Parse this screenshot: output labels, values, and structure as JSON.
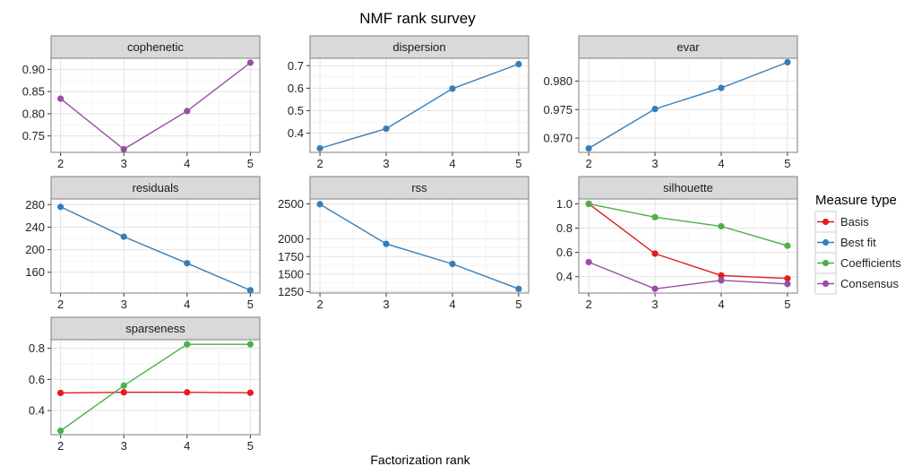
{
  "chart_data": {
    "type": "line",
    "title": "NMF rank survey",
    "xlabel": "Factorization rank",
    "legend": {
      "title": "Measure type",
      "position": "right",
      "entries": [
        {
          "name": "Basis",
          "color": "#e41a1c"
        },
        {
          "name": "Best fit",
          "color": "#377eb8"
        },
        {
          "name": "Coefficients",
          "color": "#4daf4a"
        },
        {
          "name": "Consensus",
          "color": "#984ea3"
        }
      ]
    },
    "grid": true,
    "x": [
      2,
      3,
      4,
      5
    ],
    "panels": [
      {
        "name": "cophenetic",
        "ylim": [
          0.713,
          0.925
        ],
        "yticks": [
          "0.75",
          "0.80",
          "0.85",
          "0.90"
        ],
        "series": [
          {
            "type": "Consensus",
            "values": [
              0.834,
              0.72,
              0.806,
              0.915
            ]
          }
        ]
      },
      {
        "name": "dispersion",
        "ylim": [
          0.315,
          0.733
        ],
        "yticks": [
          "0.4",
          "0.5",
          "0.6",
          "0.7"
        ],
        "series": [
          {
            "type": "Best fit",
            "values": [
              0.333,
              0.42,
              0.598,
              0.707
            ]
          }
        ]
      },
      {
        "name": "evar",
        "ylim": [
          0.9675,
          0.984
        ],
        "yticks": [
          "0.970",
          "0.975",
          "0.980"
        ],
        "series": [
          {
            "type": "Best fit",
            "values": [
              0.9682,
              0.9751,
              0.9788,
              0.9833
            ]
          }
        ]
      },
      {
        "name": "residuals",
        "ylim": [
          123,
          290
        ],
        "yticks": [
          "160",
          "200",
          "240",
          "280"
        ],
        "series": [
          {
            "type": "Best fit",
            "values": [
              276,
              223,
              176,
              128
            ]
          }
        ]
      },
      {
        "name": "rss",
        "ylim": [
          1230,
          2570
        ],
        "yticks": [
          "1250",
          "1500",
          "1750",
          "2000",
          "2500"
        ],
        "series": [
          {
            "type": "Best fit",
            "values": [
              2495,
              1930,
              1645,
              1290
            ]
          }
        ]
      },
      {
        "name": "silhouette",
        "ylim": [
          0.265,
          1.04
        ],
        "yticks": [
          "0.4",
          "0.6",
          "0.8",
          "1.0"
        ],
        "series": [
          {
            "type": "Basis",
            "values": [
              1.0,
              0.59,
              0.41,
              0.385
            ]
          },
          {
            "type": "Coefficients",
            "values": [
              1.0,
              0.89,
              0.815,
              0.655
            ]
          },
          {
            "type": "Consensus",
            "values": [
              0.52,
              0.3,
              0.37,
              0.34
            ]
          }
        ]
      },
      {
        "name": "sparseness",
        "ylim": [
          0.245,
          0.855
        ],
        "yticks": [
          "0.4",
          "0.6",
          "0.8"
        ],
        "series": [
          {
            "type": "Basis",
            "values": [
              0.513,
              0.517,
              0.517,
              0.514
            ]
          },
          {
            "type": "Coefficients",
            "values": [
              0.27,
              0.56,
              0.825,
              0.825
            ]
          }
        ]
      }
    ]
  }
}
